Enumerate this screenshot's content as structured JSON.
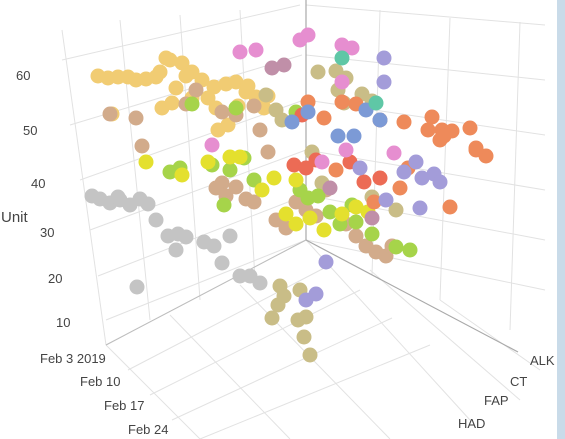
{
  "chart_data": {
    "type": "scatter",
    "title": "",
    "axes": {
      "z": {
        "label": "Unit",
        "ticks": [
          "10",
          "20",
          "30",
          "40",
          "50",
          "60"
        ]
      },
      "date": {
        "ticks": [
          "Feb 3 2019",
          "Feb 10",
          "Feb 17",
          "Feb 24"
        ]
      },
      "category": {
        "ticks": [
          "ALK",
          "CT",
          "FAP",
          "HAD"
        ]
      }
    },
    "grid": true,
    "colors": {
      "gray": "#c4c4c4",
      "yellow": "#f1cc73",
      "tan": "#d2ab8b",
      "khaki": "#c9bd87",
      "green": "#a6d44a",
      "lime": "#e4e02e",
      "orange": "#ee8a5a",
      "red": "#ec6b55",
      "pink": "#e68ed0",
      "violet": "#a39cd9",
      "blue": "#7c9ad6",
      "teal": "#5fc7a6",
      "mauve": "#c08fa8"
    },
    "series": [
      {
        "color": "gray",
        "points": [
          [
            92,
            196
          ],
          [
            100,
            199
          ],
          [
            110,
            203
          ],
          [
            120,
            200
          ],
          [
            130,
            205
          ],
          [
            140,
            199
          ],
          [
            148,
            204
          ],
          [
            156,
            220
          ],
          [
            168,
            236
          ],
          [
            178,
            234
          ],
          [
            186,
            237
          ],
          [
            204,
            242
          ],
          [
            214,
            246
          ],
          [
            230,
            236
          ],
          [
            222,
            263
          ],
          [
            240,
            276
          ],
          [
            250,
            276
          ],
          [
            260,
            283
          ],
          [
            176,
            250
          ],
          [
            137,
            287
          ],
          [
            118,
            197
          ]
        ]
      },
      {
        "color": "yellow",
        "points": [
          [
            98,
            76
          ],
          [
            108,
            78
          ],
          [
            118,
            77
          ],
          [
            128,
            77
          ],
          [
            136,
            80
          ],
          [
            146,
            79
          ],
          [
            156,
            77
          ],
          [
            160,
            72
          ],
          [
            170,
            60
          ],
          [
            182,
            63
          ],
          [
            192,
            72
          ],
          [
            202,
            80
          ],
          [
            214,
            87
          ],
          [
            226,
            84
          ],
          [
            236,
            82
          ],
          [
            246,
            92
          ],
          [
            256,
            97
          ],
          [
            264,
            108
          ],
          [
            268,
            96
          ],
          [
            166,
            58
          ],
          [
            186,
            76
          ],
          [
            208,
            98
          ],
          [
            218,
            130
          ],
          [
            228,
            125
          ],
          [
            238,
            106
          ],
          [
            112,
            114
          ],
          [
            162,
            108
          ],
          [
            172,
            103
          ],
          [
            192,
            98
          ],
          [
            216,
            108
          ],
          [
            176,
            88
          ],
          [
            248,
            86
          ]
        ]
      },
      {
        "color": "tan",
        "points": [
          [
            110,
            114
          ],
          [
            136,
            118
          ],
          [
            142,
            146
          ],
          [
            186,
            104
          ],
          [
            196,
            90
          ],
          [
            222,
            112
          ],
          [
            236,
            115
          ],
          [
            254,
            106
          ],
          [
            260,
            130
          ],
          [
            268,
            152
          ],
          [
            222,
            183
          ],
          [
            216,
            188
          ],
          [
            226,
            196
          ],
          [
            236,
            187
          ],
          [
            246,
            199
          ],
          [
            254,
            202
          ],
          [
            296,
            202
          ],
          [
            306,
            210
          ],
          [
            316,
            216
          ],
          [
            326,
            190
          ],
          [
            346,
            224
          ],
          [
            356,
            236
          ],
          [
            366,
            246
          ],
          [
            376,
            252
          ],
          [
            386,
            256
          ],
          [
            392,
            246
          ],
          [
            276,
            220
          ],
          [
            286,
            228
          ]
        ]
      },
      {
        "color": "khaki",
        "points": [
          [
            318,
            72
          ],
          [
            336,
            71
          ],
          [
            346,
            78
          ],
          [
            338,
            90
          ],
          [
            362,
            94
          ],
          [
            372,
            101
          ],
          [
            344,
            103
          ],
          [
            266,
            95
          ],
          [
            276,
            110
          ],
          [
            282,
            120
          ],
          [
            312,
            152
          ],
          [
            322,
            183
          ],
          [
            372,
            197
          ],
          [
            396,
            210
          ],
          [
            300,
            290
          ],
          [
            306,
            317
          ],
          [
            298,
            320
          ],
          [
            304,
            337
          ],
          [
            278,
            305
          ],
          [
            272,
            318
          ],
          [
            310,
            355
          ],
          [
            280,
            286
          ],
          [
            284,
            296
          ]
        ]
      },
      {
        "color": "green",
        "points": [
          [
            236,
            108
          ],
          [
            192,
            104
          ],
          [
            296,
            112
          ],
          [
            212,
            165
          ],
          [
            230,
            170
          ],
          [
            244,
            158
          ],
          [
            254,
            180
          ],
          [
            300,
            190
          ],
          [
            308,
            198
          ],
          [
            318,
            196
          ],
          [
            330,
            212
          ],
          [
            340,
            224
          ],
          [
            356,
            222
          ],
          [
            372,
            234
          ],
          [
            180,
            168
          ],
          [
            170,
            172
          ],
          [
            396,
            247
          ],
          [
            410,
            250
          ],
          [
            352,
            205
          ],
          [
            224,
            205
          ]
        ]
      },
      {
        "color": "lime",
        "points": [
          [
            146,
            162
          ],
          [
            182,
            175
          ],
          [
            208,
            162
          ],
          [
            230,
            157
          ],
          [
            262,
            190
          ],
          [
            274,
            178
          ],
          [
            286,
            214
          ],
          [
            296,
            224
          ],
          [
            310,
            218
          ],
          [
            324,
            230
          ],
          [
            342,
            214
          ],
          [
            356,
            207
          ],
          [
            368,
            212
          ],
          [
            240,
            157
          ],
          [
            296,
            180
          ]
        ]
      },
      {
        "color": "orange",
        "points": [
          [
            308,
            102
          ],
          [
            324,
            118
          ],
          [
            342,
            102
          ],
          [
            356,
            104
          ],
          [
            380,
            120
          ],
          [
            404,
            122
          ],
          [
            432,
            117
          ],
          [
            442,
            130
          ],
          [
            452,
            131
          ],
          [
            470,
            128
          ],
          [
            476,
            148
          ],
          [
            486,
            156
          ],
          [
            440,
            140
          ],
          [
            428,
            130
          ],
          [
            444,
            136
          ],
          [
            476,
            150
          ],
          [
            400,
            188
          ],
          [
            408,
            168
          ],
          [
            450,
            207
          ],
          [
            374,
            202
          ],
          [
            336,
            170
          ]
        ]
      },
      {
        "color": "red",
        "points": [
          [
            302,
            115
          ],
          [
            294,
            165
          ],
          [
            306,
            168
          ],
          [
            316,
            160
          ],
          [
            350,
            162
          ],
          [
            364,
            182
          ],
          [
            380,
            178
          ]
        ]
      },
      {
        "color": "pink",
        "points": [
          [
            240,
            52
          ],
          [
            256,
            50
          ],
          [
            300,
            40
          ],
          [
            308,
            35
          ],
          [
            342,
            45
          ],
          [
            352,
            48
          ],
          [
            342,
            82
          ],
          [
            212,
            145
          ],
          [
            322,
            162
          ],
          [
            346,
            150
          ],
          [
            394,
            153
          ]
        ]
      },
      {
        "color": "violet",
        "points": [
          [
            384,
            82
          ],
          [
            384,
            58
          ],
          [
            404,
            172
          ],
          [
            416,
            162
          ],
          [
            422,
            178
          ],
          [
            434,
            174
          ],
          [
            440,
            182
          ],
          [
            420,
            208
          ],
          [
            360,
            168
          ],
          [
            386,
            200
          ],
          [
            306,
            300
          ],
          [
            316,
            294
          ],
          [
            326,
            262
          ]
        ]
      },
      {
        "color": "blue",
        "points": [
          [
            292,
            122
          ],
          [
            308,
            112
          ],
          [
            338,
            136
          ],
          [
            354,
            136
          ],
          [
            380,
            120
          ],
          [
            366,
            110
          ]
        ]
      },
      {
        "color": "teal",
        "points": [
          [
            342,
            58
          ],
          [
            376,
            103
          ]
        ]
      },
      {
        "color": "mauve",
        "points": [
          [
            272,
            68
          ],
          [
            284,
            65
          ],
          [
            330,
            188
          ],
          [
            372,
            218
          ]
        ]
      }
    ]
  }
}
